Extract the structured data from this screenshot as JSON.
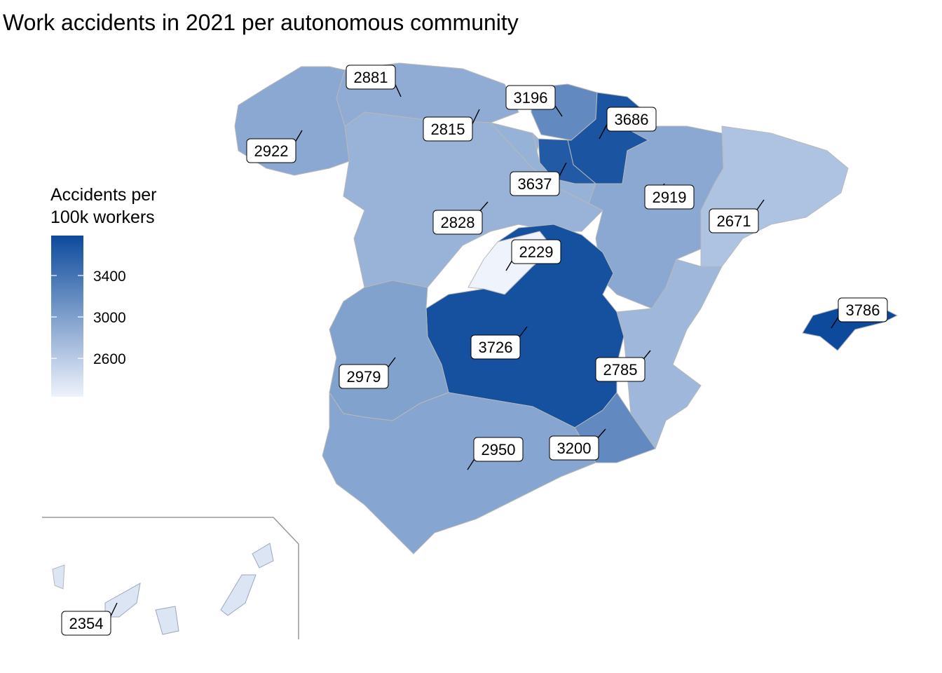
{
  "title": "Work accidents in 2021 per autonomous community",
  "legend": {
    "title_line1": "Accidents per",
    "title_line2": "100k workers",
    "ticks": [
      3400,
      3000,
      2600
    ],
    "min": 2229,
    "max": 3786,
    "color_low": "#eef3fc",
    "color_high": "#0d4a9c"
  },
  "chart_data": {
    "type": "choropleth",
    "regions": [
      {
        "value": 2881
      },
      {
        "value": 3196
      },
      {
        "value": 2815
      },
      {
        "value": 3686
      },
      {
        "value": 2922
      },
      {
        "value": 3637
      },
      {
        "value": 2919
      },
      {
        "value": 2828
      },
      {
        "value": 2671
      },
      {
        "value": 2229
      },
      {
        "value": 3786
      },
      {
        "value": 3726
      },
      {
        "value": 2785
      },
      {
        "value": 2979
      },
      {
        "value": 3200
      },
      {
        "value": 2950
      },
      {
        "value": 2354
      }
    ]
  }
}
